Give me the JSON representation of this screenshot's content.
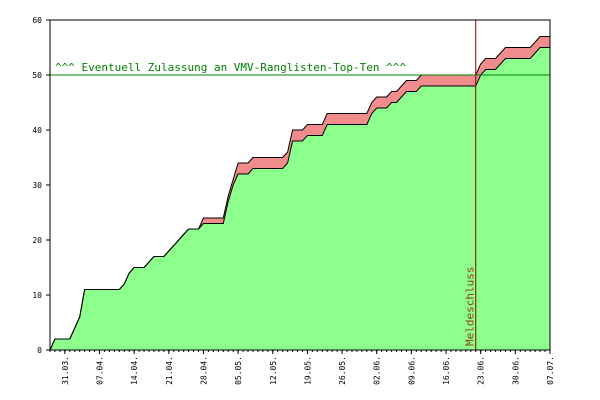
{
  "chart_data": {
    "type": "area",
    "title": "",
    "xlabel": "",
    "ylabel": "",
    "ylim": [
      0,
      60
    ],
    "yticks": [
      0,
      10,
      20,
      30,
      40,
      50,
      60
    ],
    "xrange": [
      "2024-03-28",
      "2024-07-07"
    ],
    "xtick_dates": [
      "2024-03-31",
      "2024-04-07",
      "2024-04-14",
      "2024-04-21",
      "2024-04-28",
      "2024-05-05",
      "2024-05-12",
      "2024-05-19",
      "2024-05-26",
      "2024-06-02",
      "2024-06-09",
      "2024-06-16",
      "2024-06-23",
      "2024-06-30",
      "2024-07-07"
    ],
    "xtick_labels": [
      "31.03.",
      "07.04.",
      "14.04.",
      "21.04.",
      "28.04.",
      "05.05.",
      "12.05.",
      "19.05.",
      "26.05.",
      "02.06.",
      "09.06.",
      "16.06.",
      "23.06.",
      "30.06.",
      "07.07."
    ],
    "colors": {
      "lower_fill": "#8cff8c",
      "band_fill": "#f08c8c",
      "line": "#000000",
      "threshold": "#008000",
      "marker": "#8b0000",
      "marker_text": "#8b4513",
      "axis": "#000000"
    },
    "series": [
      {
        "x": [
          "2024-03-28",
          "2024-03-29",
          "2024-03-30",
          "2024-03-31",
          "2024-04-01",
          "2024-04-02",
          "2024-04-03",
          "2024-04-04",
          "2024-04-05",
          "2024-04-06",
          "2024-04-07",
          "2024-04-08",
          "2024-04-09",
          "2024-04-10",
          "2024-04-11",
          "2024-04-12",
          "2024-04-13",
          "2024-04-14",
          "2024-04-15",
          "2024-04-16",
          "2024-04-17",
          "2024-04-18",
          "2024-04-19",
          "2024-04-20",
          "2024-04-21",
          "2024-04-22",
          "2024-04-23",
          "2024-04-24",
          "2024-04-25",
          "2024-04-26",
          "2024-04-27",
          "2024-04-28",
          "2024-04-29",
          "2024-04-30",
          "2024-05-01",
          "2024-05-02",
          "2024-05-03",
          "2024-05-04",
          "2024-05-05",
          "2024-05-06",
          "2024-05-07",
          "2024-05-08",
          "2024-05-09",
          "2024-05-10",
          "2024-05-11",
          "2024-05-12",
          "2024-05-13",
          "2024-05-14",
          "2024-05-15",
          "2024-05-16",
          "2024-05-17",
          "2024-05-18",
          "2024-05-19",
          "2024-05-20",
          "2024-05-21",
          "2024-05-22",
          "2024-05-23",
          "2024-05-24",
          "2024-05-25",
          "2024-05-26",
          "2024-05-27",
          "2024-05-28",
          "2024-05-29",
          "2024-05-30",
          "2024-05-31",
          "2024-06-01",
          "2024-06-02",
          "2024-06-03",
          "2024-06-04",
          "2024-06-05",
          "2024-06-06",
          "2024-06-07",
          "2024-06-08",
          "2024-06-09",
          "2024-06-10",
          "2024-06-11",
          "2024-06-12",
          "2024-06-13",
          "2024-06-14",
          "2024-06-15",
          "2024-06-16",
          "2024-06-17",
          "2024-06-18",
          "2024-06-19",
          "2024-06-20",
          "2024-06-21",
          "2024-06-22",
          "2024-06-23",
          "2024-06-24",
          "2024-06-25",
          "2024-06-26",
          "2024-06-27",
          "2024-06-28",
          "2024-06-29",
          "2024-06-30",
          "2024-07-01",
          "2024-07-02",
          "2024-07-03",
          "2024-07-04",
          "2024-07-05",
          "2024-07-06",
          "2024-07-07"
        ],
        "lower": [
          0,
          2,
          2,
          2,
          2,
          4,
          6,
          11,
          11,
          11,
          11,
          11,
          11,
          11,
          11,
          12,
          14,
          15,
          15,
          15,
          16,
          17,
          17,
          17,
          18,
          19,
          20,
          21,
          22,
          22,
          22,
          23,
          23,
          23,
          23,
          23,
          27,
          30,
          32,
          32,
          32,
          33,
          33,
          33,
          33,
          33,
          33,
          33,
          34,
          38,
          38,
          38,
          39,
          39,
          39,
          39,
          41,
          41,
          41,
          41,
          41,
          41,
          41,
          41,
          41,
          43,
          44,
          44,
          44,
          45,
          45,
          46,
          47,
          47,
          47,
          48,
          48,
          48,
          48,
          48,
          48,
          48,
          48,
          48,
          48,
          48,
          48,
          50,
          51,
          51,
          51,
          52,
          53,
          53,
          53,
          53,
          53,
          53,
          54,
          55,
          55,
          55
        ],
        "upper": [
          0,
          2,
          2,
          2,
          2,
          4,
          6,
          11,
          11,
          11,
          11,
          11,
          11,
          11,
          11,
          12,
          14,
          15,
          15,
          15,
          16,
          17,
          17,
          17,
          18,
          19,
          20,
          21,
          22,
          22,
          22,
          24,
          24,
          24,
          24,
          24,
          28,
          31,
          34,
          34,
          34,
          35,
          35,
          35,
          35,
          35,
          35,
          35,
          36,
          40,
          40,
          40,
          41,
          41,
          41,
          41,
          43,
          43,
          43,
          43,
          43,
          43,
          43,
          43,
          43,
          45,
          46,
          46,
          46,
          47,
          47,
          48,
          49,
          49,
          49,
          50,
          50,
          50,
          50,
          50,
          50,
          50,
          50,
          50,
          50,
          50,
          50,
          52,
          53,
          53,
          53,
          54,
          55,
          55,
          55,
          55,
          55,
          55,
          56,
          57,
          57,
          57
        ]
      }
    ],
    "annotations": {
      "threshold_value": 50,
      "threshold_label": "^^^ Eventuell Zulassung an VMV-Ranglisten-Top-Ten ^^^",
      "marker_date": "2024-06-22",
      "marker_label": "Meldeschluss"
    }
  }
}
